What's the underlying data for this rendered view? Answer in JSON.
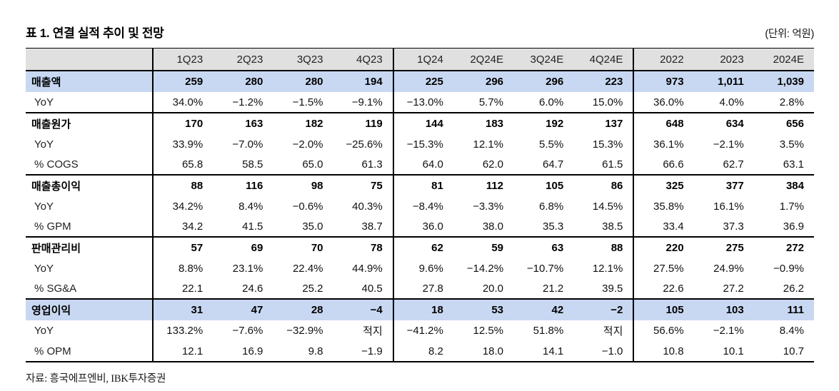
{
  "title": "표 1. 연결 실적 추이 및 전망",
  "unit": "(단위: 억원)",
  "source": "자료: 흥국에프엔비, IBK투자증권",
  "table": {
    "columns": [
      "",
      "1Q23",
      "2Q23",
      "3Q23",
      "4Q23",
      "1Q24",
      "2Q24E",
      "3Q24E",
      "4Q24E",
      "2022",
      "2023",
      "2024E"
    ],
    "group_divider_cols": [
      1,
      5,
      9
    ],
    "rows": [
      {
        "label": "매출액",
        "type": "group",
        "highlight": true,
        "sep": false,
        "values": [
          "259",
          "280",
          "280",
          "194",
          "225",
          "296",
          "296",
          "223",
          "973",
          "1,011",
          "1,039"
        ]
      },
      {
        "label": "YoY",
        "type": "sub",
        "highlight": false,
        "sep": false,
        "values": [
          "34.0%",
          "−1.2%",
          "−1.5%",
          "−9.1%",
          "−13.0%",
          "5.7%",
          "6.0%",
          "15.0%",
          "36.0%",
          "4.0%",
          "2.8%"
        ]
      },
      {
        "label": "매출원가",
        "type": "group",
        "highlight": false,
        "sep": true,
        "values": [
          "170",
          "163",
          "182",
          "119",
          "144",
          "183",
          "192",
          "137",
          "648",
          "634",
          "656"
        ]
      },
      {
        "label": "YoY",
        "type": "sub",
        "highlight": false,
        "sep": false,
        "values": [
          "33.9%",
          "−7.0%",
          "−2.0%",
          "−25.6%",
          "−15.3%",
          "12.1%",
          "5.5%",
          "15.3%",
          "36.1%",
          "−2.1%",
          "3.5%"
        ]
      },
      {
        "label": "% COGS",
        "type": "sub",
        "highlight": false,
        "sep": false,
        "values": [
          "65.8",
          "58.5",
          "65.0",
          "61.3",
          "64.0",
          "62.0",
          "64.7",
          "61.5",
          "66.6",
          "62.7",
          "63.1"
        ]
      },
      {
        "label": "매출총이익",
        "type": "group",
        "highlight": false,
        "sep": true,
        "values": [
          "88",
          "116",
          "98",
          "75",
          "81",
          "112",
          "105",
          "86",
          "325",
          "377",
          "384"
        ]
      },
      {
        "label": "YoY",
        "type": "sub",
        "highlight": false,
        "sep": false,
        "values": [
          "34.2%",
          "8.4%",
          "−0.6%",
          "40.3%",
          "−8.4%",
          "−3.3%",
          "6.8%",
          "14.5%",
          "35.8%",
          "16.1%",
          "1.7%"
        ]
      },
      {
        "label": "% GPM",
        "type": "sub",
        "highlight": false,
        "sep": false,
        "values": [
          "34.2",
          "41.5",
          "35.0",
          "38.7",
          "36.0",
          "38.0",
          "35.3",
          "38.5",
          "33.4",
          "37.3",
          "36.9"
        ]
      },
      {
        "label": "판매관리비",
        "type": "group",
        "highlight": false,
        "sep": true,
        "values": [
          "57",
          "69",
          "70",
          "78",
          "62",
          "59",
          "63",
          "88",
          "220",
          "275",
          "272"
        ]
      },
      {
        "label": "YoY",
        "type": "sub",
        "highlight": false,
        "sep": false,
        "values": [
          "8.8%",
          "23.1%",
          "22.4%",
          "44.9%",
          "9.6%",
          "−14.2%",
          "−10.7%",
          "12.1%",
          "27.5%",
          "24.9%",
          "−0.9%"
        ]
      },
      {
        "label": "% SG&A",
        "type": "sub",
        "highlight": false,
        "sep": false,
        "values": [
          "22.1",
          "24.6",
          "25.2",
          "40.5",
          "27.8",
          "20.0",
          "21.2",
          "39.5",
          "22.6",
          "27.2",
          "26.2"
        ]
      },
      {
        "label": "영업이익",
        "type": "group",
        "highlight": true,
        "sep": true,
        "values": [
          "31",
          "47",
          "28",
          "−4",
          "18",
          "53",
          "42",
          "−2",
          "105",
          "103",
          "111"
        ]
      },
      {
        "label": "YoY",
        "type": "sub",
        "highlight": false,
        "sep": false,
        "values": [
          "133.2%",
          "−7.6%",
          "−32.9%",
          "적지",
          "−41.2%",
          "12.5%",
          "51.8%",
          "적지",
          "56.6%",
          "−2.1%",
          "8.4%"
        ]
      },
      {
        "label": "% OPM",
        "type": "sub",
        "highlight": false,
        "sep": false,
        "values": [
          "12.1",
          "16.9",
          "9.8",
          "−1.9",
          "8.2",
          "18.0",
          "14.1",
          "−1.0",
          "10.8",
          "10.1",
          "10.7"
        ]
      }
    ]
  },
  "colors": {
    "header_bg": "#e0e0e0",
    "highlight_bg": "#c9d8f2",
    "border": "#000000"
  }
}
